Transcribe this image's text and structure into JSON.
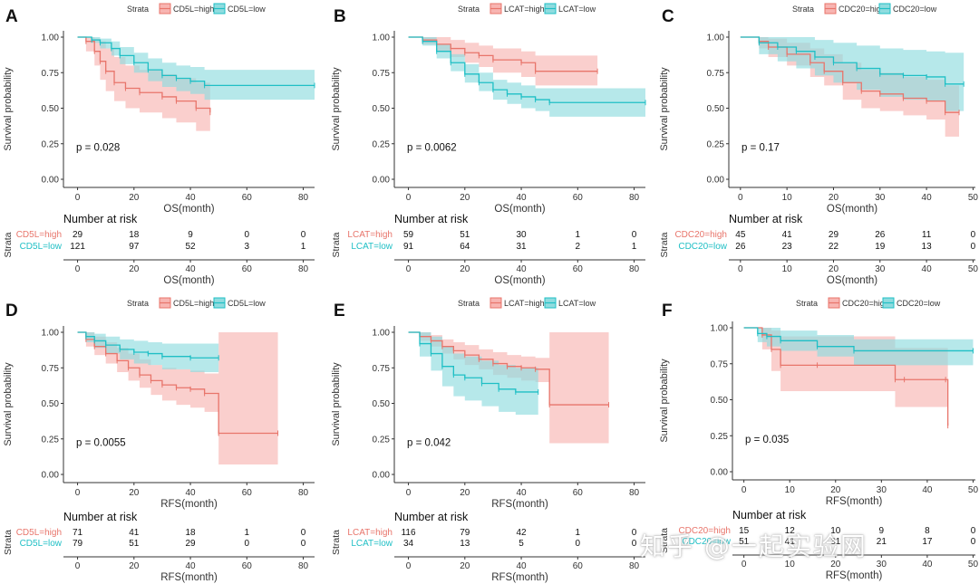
{
  "colors": {
    "high": "#e8756b",
    "low": "#1fbfc5",
    "high_fill": "#f8b5b2",
    "low_fill": "#8fdcdf"
  },
  "chart_data": [
    {
      "panel": "A",
      "type": "line",
      "subtype": "kaplan-meier",
      "strata_title": "Strata",
      "legend": [
        "CD5L=high",
        "CD5L=low"
      ],
      "ylabel": "Survival probability",
      "xlabel": "OS(month)",
      "xlim": [
        -5,
        84
      ],
      "ylim": [
        0,
        1
      ],
      "xticks": [
        "0",
        "20",
        "40",
        "60",
        "80"
      ],
      "yticks": [
        "0.00",
        "0.25",
        "0.50",
        "0.75",
        "1.00"
      ],
      "p_value": "p = 0.028",
      "series": [
        {
          "name": "CD5L=high",
          "x": [
            0,
            3,
            6,
            8,
            10,
            13,
            17,
            22,
            30,
            35,
            42,
            47
          ],
          "y": [
            1,
            0.97,
            0.9,
            0.83,
            0.76,
            0.68,
            0.64,
            0.61,
            0.58,
            0.55,
            0.5,
            0.47
          ],
          "lower": [
            1,
            0.9,
            0.8,
            0.7,
            0.62,
            0.55,
            0.5,
            0.47,
            0.43,
            0.4,
            0.34,
            0.3
          ],
          "upper": [
            1,
            1,
            0.99,
            0.97,
            0.92,
            0.86,
            0.8,
            0.77,
            0.74,
            0.71,
            0.68,
            0.66
          ]
        },
        {
          "name": "CD5L=low",
          "x": [
            0,
            5,
            8,
            12,
            15,
            20,
            25,
            30,
            35,
            40,
            45,
            84
          ],
          "y": [
            1,
            0.98,
            0.96,
            0.92,
            0.87,
            0.82,
            0.77,
            0.73,
            0.71,
            0.69,
            0.66,
            0.66
          ],
          "lower": [
            1,
            0.96,
            0.92,
            0.87,
            0.81,
            0.75,
            0.69,
            0.65,
            0.62,
            0.6,
            0.56,
            0.56
          ],
          "upper": [
            1,
            1,
            0.99,
            0.97,
            0.93,
            0.89,
            0.85,
            0.82,
            0.8,
            0.79,
            0.77,
            0.77
          ]
        }
      ],
      "risk_title": "Number at risk",
      "risk_xlabel": "OS(month)",
      "risk_label": "Strata",
      "risk_rows": [
        {
          "name": "CD5L=high",
          "values": [
            "29",
            "18",
            "9",
            "0",
            "0"
          ]
        },
        {
          "name": "CD5L=low",
          "values": [
            "121",
            "97",
            "52",
            "3",
            "1"
          ]
        }
      ]
    },
    {
      "panel": "B",
      "type": "line",
      "subtype": "kaplan-meier",
      "strata_title": "Strata",
      "legend": [
        "LCAT=high",
        "LCAT=low"
      ],
      "ylabel": "Survival probability",
      "xlabel": "OS(month)",
      "xlim": [
        -5,
        84
      ],
      "ylim": [
        0,
        1
      ],
      "xticks": [
        "0",
        "20",
        "40",
        "60",
        "80"
      ],
      "yticks": [
        "0.00",
        "0.25",
        "0.50",
        "0.75",
        "1.00"
      ],
      "p_value": "p = 0.0062",
      "series": [
        {
          "name": "LCAT=high",
          "x": [
            0,
            5,
            10,
            15,
            20,
            25,
            30,
            40,
            45,
            67
          ],
          "y": [
            1,
            0.98,
            0.95,
            0.92,
            0.89,
            0.87,
            0.84,
            0.82,
            0.76,
            0.76
          ],
          "lower": [
            1,
            0.95,
            0.9,
            0.86,
            0.82,
            0.79,
            0.75,
            0.72,
            0.66,
            0.66
          ],
          "upper": [
            1,
            1,
            1,
            0.98,
            0.96,
            0.94,
            0.92,
            0.9,
            0.87,
            0.87
          ]
        },
        {
          "name": "LCAT=low",
          "x": [
            0,
            5,
            10,
            15,
            20,
            25,
            30,
            35,
            40,
            45,
            50,
            84
          ],
          "y": [
            1,
            0.97,
            0.9,
            0.82,
            0.74,
            0.68,
            0.63,
            0.6,
            0.58,
            0.56,
            0.54,
            0.54
          ],
          "lower": [
            1,
            0.94,
            0.85,
            0.76,
            0.68,
            0.62,
            0.56,
            0.53,
            0.5,
            0.48,
            0.44,
            0.44
          ],
          "upper": [
            1,
            1,
            0.95,
            0.88,
            0.81,
            0.75,
            0.7,
            0.68,
            0.66,
            0.64,
            0.64,
            0.64
          ]
        }
      ],
      "risk_title": "Number at risk",
      "risk_xlabel": "OS(month)",
      "risk_label": "Strata",
      "risk_rows": [
        {
          "name": "LCAT=high",
          "values": [
            "59",
            "51",
            "30",
            "1",
            "0"
          ]
        },
        {
          "name": "LCAT=low",
          "values": [
            "91",
            "64",
            "31",
            "2",
            "1"
          ]
        }
      ]
    },
    {
      "panel": "C",
      "type": "line",
      "subtype": "kaplan-meier",
      "strata_title": "Strata",
      "legend": [
        "CDC20=high",
        "CDC20=low"
      ],
      "ylabel": "Survival probability",
      "xlabel": "OS(month)",
      "xlim": [
        -2.5,
        50.5
      ],
      "ylim": [
        0,
        1
      ],
      "xticks": [
        "0",
        "10",
        "20",
        "30",
        "40",
        "50"
      ],
      "yticks": [
        "0.00",
        "0.25",
        "0.50",
        "0.75",
        "1.00"
      ],
      "p_value": "p = 0.17",
      "series": [
        {
          "name": "CDC20=high",
          "x": [
            0,
            4,
            6,
            10,
            15,
            18,
            22,
            26,
            30,
            35,
            40,
            44,
            47
          ],
          "y": [
            1,
            0.97,
            0.93,
            0.88,
            0.82,
            0.76,
            0.68,
            0.62,
            0.6,
            0.57,
            0.55,
            0.47,
            0.47
          ],
          "lower": [
            1,
            0.92,
            0.86,
            0.8,
            0.72,
            0.66,
            0.56,
            0.5,
            0.48,
            0.45,
            0.42,
            0.3,
            0.3
          ],
          "upper": [
            1,
            1,
            0.99,
            0.96,
            0.92,
            0.88,
            0.82,
            0.77,
            0.75,
            0.72,
            0.7,
            0.66,
            0.66
          ]
        },
        {
          "name": "CDC20=low",
          "x": [
            0,
            4,
            8,
            12,
            16,
            20,
            25,
            30,
            35,
            40,
            44,
            48
          ],
          "y": [
            1,
            0.96,
            0.93,
            0.9,
            0.86,
            0.82,
            0.78,
            0.74,
            0.73,
            0.72,
            0.67,
            0.67
          ],
          "lower": [
            1,
            0.88,
            0.83,
            0.78,
            0.73,
            0.68,
            0.63,
            0.58,
            0.56,
            0.55,
            0.48,
            0.48
          ],
          "upper": [
            1,
            1,
            1,
            1,
            0.98,
            0.96,
            0.94,
            0.92,
            0.91,
            0.9,
            0.89,
            0.89
          ]
        }
      ],
      "risk_title": "Number at risk",
      "risk_xlabel": "OS(month)",
      "risk_label": "Strata",
      "risk_rows": [
        {
          "name": "CDC20=high",
          "values": [
            "45",
            "41",
            "29",
            "26",
            "11",
            "0"
          ]
        },
        {
          "name": "CDC20=low",
          "values": [
            "26",
            "23",
            "22",
            "19",
            "13",
            "0"
          ]
        }
      ]
    },
    {
      "panel": "D",
      "type": "line",
      "subtype": "kaplan-meier",
      "strata_title": "Strata",
      "legend": [
        "CD5L=high",
        "CD5L=low"
      ],
      "ylabel": "Survival probability",
      "xlabel": "RFS(month)",
      "xlim": [
        -5,
        84
      ],
      "ylim": [
        0,
        1
      ],
      "xticks": [
        "0",
        "20",
        "40",
        "60",
        "80"
      ],
      "yticks": [
        "0.00",
        "0.25",
        "0.50",
        "0.75",
        "1.00"
      ],
      "p_value": "p = 0.0055",
      "series": [
        {
          "name": "CD5L=high",
          "x": [
            0,
            3,
            6,
            10,
            14,
            18,
            22,
            26,
            30,
            35,
            40,
            45,
            50,
            71
          ],
          "y": [
            1,
            0.95,
            0.9,
            0.85,
            0.8,
            0.75,
            0.7,
            0.66,
            0.63,
            0.61,
            0.6,
            0.57,
            0.29,
            0.29
          ],
          "lower": [
            1,
            0.9,
            0.84,
            0.78,
            0.72,
            0.66,
            0.61,
            0.56,
            0.52,
            0.49,
            0.47,
            0.44,
            0.07,
            0.07
          ],
          "upper": [
            1,
            1,
            0.97,
            0.93,
            0.89,
            0.85,
            0.81,
            0.77,
            0.75,
            0.74,
            0.73,
            0.71,
            1,
            1
          ]
        },
        {
          "name": "CD5L=low",
          "x": [
            0,
            3,
            6,
            10,
            15,
            20,
            25,
            30,
            40,
            50
          ],
          "y": [
            1,
            0.97,
            0.94,
            0.91,
            0.88,
            0.86,
            0.85,
            0.83,
            0.82,
            0.82
          ],
          "lower": [
            1,
            0.93,
            0.89,
            0.85,
            0.81,
            0.78,
            0.77,
            0.74,
            0.72,
            0.72
          ],
          "upper": [
            1,
            1,
            0.99,
            0.97,
            0.95,
            0.94,
            0.93,
            0.92,
            0.92,
            0.92
          ]
        }
      ],
      "risk_title": "Number at risk",
      "risk_xlabel": "RFS(month)",
      "risk_label": "Strata",
      "risk_rows": [
        {
          "name": "CD5L=high",
          "values": [
            "71",
            "41",
            "18",
            "1",
            "0"
          ]
        },
        {
          "name": "CD5L=low",
          "values": [
            "79",
            "51",
            "29",
            "0",
            "0"
          ]
        }
      ]
    },
    {
      "panel": "E",
      "type": "line",
      "subtype": "kaplan-meier",
      "strata_title": "Strata",
      "legend": [
        "LCAT=high",
        "LCAT=low"
      ],
      "ylabel": "Survival probability",
      "xlabel": "RFS(month)",
      "xlim": [
        -5,
        84
      ],
      "ylim": [
        0,
        1
      ],
      "xticks": [
        "0",
        "20",
        "40",
        "60",
        "80"
      ],
      "yticks": [
        "0.00",
        "0.25",
        "0.50",
        "0.75",
        "1.00"
      ],
      "p_value": "p = 0.042",
      "series": [
        {
          "name": "LCAT=high",
          "x": [
            0,
            4,
            8,
            12,
            16,
            20,
            25,
            30,
            35,
            40,
            45,
            50,
            71
          ],
          "y": [
            1,
            0.97,
            0.94,
            0.9,
            0.87,
            0.84,
            0.81,
            0.78,
            0.76,
            0.75,
            0.74,
            0.49,
            0.49
          ],
          "lower": [
            1,
            0.94,
            0.9,
            0.85,
            0.81,
            0.77,
            0.74,
            0.7,
            0.68,
            0.66,
            0.65,
            0.22,
            0.22
          ],
          "upper": [
            1,
            1,
            0.98,
            0.95,
            0.93,
            0.91,
            0.88,
            0.86,
            0.84,
            0.83,
            0.82,
            1,
            1
          ]
        },
        {
          "name": "LCAT=low",
          "x": [
            0,
            4,
            8,
            12,
            16,
            20,
            26,
            32,
            38,
            46
          ],
          "y": [
            1,
            0.92,
            0.85,
            0.76,
            0.7,
            0.68,
            0.64,
            0.6,
            0.58,
            0.58
          ],
          "lower": [
            1,
            0.83,
            0.73,
            0.62,
            0.55,
            0.52,
            0.48,
            0.44,
            0.42,
            0.42
          ],
          "upper": [
            1,
            1,
            0.97,
            0.9,
            0.85,
            0.83,
            0.8,
            0.77,
            0.75,
            0.75
          ]
        }
      ],
      "risk_title": "Number at risk",
      "risk_xlabel": "RFS(month)",
      "risk_label": "Strata",
      "risk_rows": [
        {
          "name": "LCAT=high",
          "values": [
            "116",
            "79",
            "42",
            "1",
            "0"
          ]
        },
        {
          "name": "LCAT=low",
          "values": [
            "34",
            "13",
            "5",
            "0",
            "0"
          ]
        }
      ]
    },
    {
      "panel": "F",
      "type": "line",
      "subtype": "kaplan-meier",
      "strata_title": "Strata",
      "legend": [
        "CDC20=high",
        "CDC20=low"
      ],
      "ylabel": "Survival probability",
      "xlabel": "RFS(month)",
      "xlim": [
        -2.5,
        50.5
      ],
      "ylim": [
        0,
        1
      ],
      "xticks": [
        "0",
        "10",
        "20",
        "30",
        "40",
        "50"
      ],
      "yticks": [
        "0.00",
        "0.25",
        "0.50",
        "0.75",
        "1.00"
      ],
      "p_value": "p = 0.035",
      "series": [
        {
          "name": "CDC20=high",
          "x": [
            0,
            4,
            6,
            8,
            16,
            33,
            35,
            44,
            44.5
          ],
          "y": [
            1,
            0.95,
            0.85,
            0.74,
            0.74,
            0.64,
            0.64,
            0.64,
            0.32
          ],
          "lower": [
            1,
            0.85,
            0.7,
            0.56,
            0.56,
            0.45,
            0.45,
            0.45,
            0.45
          ],
          "upper": [
            1,
            1,
            0.98,
            0.94,
            0.94,
            0.86,
            0.86,
            0.86,
            0.86
          ]
        },
        {
          "name": "CDC20=low",
          "x": [
            0,
            3,
            5,
            8,
            16,
            24,
            50
          ],
          "y": [
            1,
            0.96,
            0.94,
            0.91,
            0.87,
            0.84,
            0.84
          ],
          "lower": [
            1,
            0.9,
            0.87,
            0.84,
            0.8,
            0.74,
            0.74
          ],
          "upper": [
            1,
            1,
            1,
            0.98,
            0.95,
            0.92,
            0.92
          ]
        }
      ],
      "risk_title": "Number at risk",
      "risk_xlabel": "RFS(month)",
      "risk_label": "Strata",
      "risk_rows": [
        {
          "name": "CDC20=high",
          "values": [
            "15",
            "12",
            "10",
            "9",
            "8",
            "0"
          ]
        },
        {
          "name": "CDC20=low",
          "values": [
            "51",
            "41",
            "31",
            "21",
            "17",
            "0"
          ]
        }
      ]
    }
  ],
  "watermark": "知乎 @一起实验网"
}
